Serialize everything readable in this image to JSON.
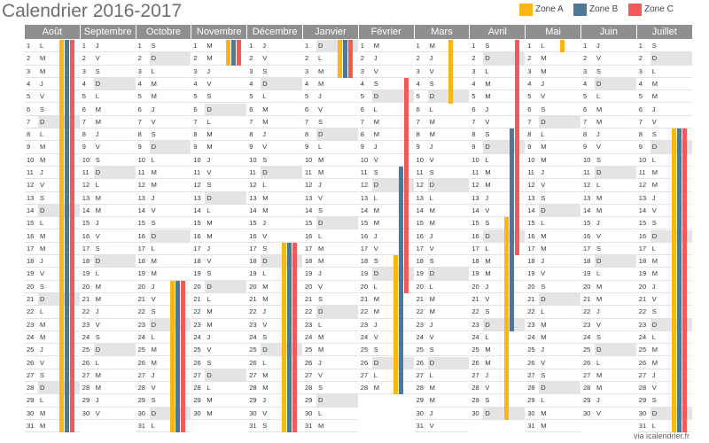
{
  "title": "Calendrier 2016-2017",
  "legend": [
    {
      "label": "Zone A",
      "color": "#fbb614"
    },
    {
      "label": "Zone B",
      "color": "#4f7897"
    },
    {
      "label": "Zone C",
      "color": "#f25a5a"
    }
  ],
  "months": [
    {
      "name": "Août",
      "days": 31,
      "start_weekday": 0
    },
    {
      "name": "Septembre",
      "days": 30,
      "start_weekday": 3
    },
    {
      "name": "Octobre",
      "days": 31,
      "start_weekday": 5
    },
    {
      "name": "Novembre",
      "days": 30,
      "start_weekday": 1
    },
    {
      "name": "Décembre",
      "days": 31,
      "start_weekday": 3
    },
    {
      "name": "Janvier",
      "days": 31,
      "start_weekday": 6
    },
    {
      "name": "Février",
      "days": 28,
      "start_weekday": 2
    },
    {
      "name": "Mars",
      "days": 31,
      "start_weekday": 2
    },
    {
      "name": "Avril",
      "days": 30,
      "start_weekday": 5
    },
    {
      "name": "Mai",
      "days": 31,
      "start_weekday": 0
    },
    {
      "name": "Juin",
      "days": 30,
      "start_weekday": 3
    },
    {
      "name": "Juillet",
      "days": 31,
      "start_weekday": 5
    }
  ],
  "weekday_letters": [
    "L",
    "M",
    "M",
    "J",
    "V",
    "S",
    "D"
  ],
  "holidays": [
    {
      "zone": "A",
      "ranges": [
        [
          0,
          1,
          31
        ],
        [
          2,
          20,
          31
        ],
        [
          3,
          1,
          2
        ],
        [
          4,
          17,
          31
        ],
        [
          5,
          1,
          3
        ],
        [
          6,
          18,
          28
        ],
        [
          7,
          1,
          5
        ],
        [
          8,
          15,
          30
        ],
        [
          9,
          1,
          1
        ],
        [
          11,
          8,
          31
        ]
      ]
    },
    {
      "zone": "B",
      "ranges": [
        [
          0,
          1,
          31
        ],
        [
          2,
          20,
          31
        ],
        [
          3,
          1,
          2
        ],
        [
          4,
          17,
          31
        ],
        [
          5,
          1,
          3
        ],
        [
          6,
          11,
          28
        ],
        [
          8,
          8,
          23
        ],
        [
          11,
          8,
          31
        ]
      ]
    },
    {
      "zone": "C",
      "ranges": [
        [
          0,
          1,
          31
        ],
        [
          2,
          20,
          31
        ],
        [
          3,
          1,
          2
        ],
        [
          4,
          17,
          31
        ],
        [
          5,
          1,
          3
        ],
        [
          6,
          4,
          20
        ],
        [
          8,
          1,
          17
        ],
        [
          11,
          8,
          31
        ]
      ]
    }
  ],
  "footer": "via icalendrier.fr"
}
